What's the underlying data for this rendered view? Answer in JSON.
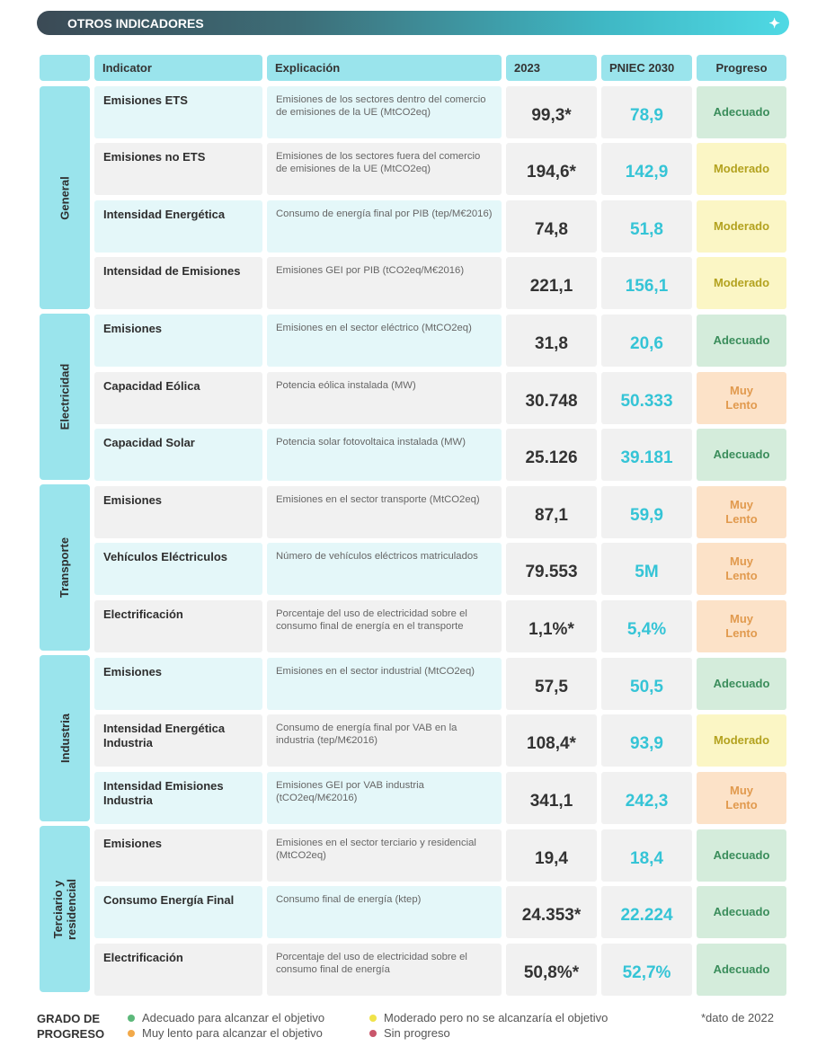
{
  "banner": {
    "title": "OTROS INDICADORES",
    "icon": "sparkle-icon"
  },
  "headers": {
    "indicator": "Indicator",
    "explicacion": "Explicación",
    "y2023": "2023",
    "pniec": "PNIEC 2030",
    "progreso": "Progreso"
  },
  "groups": [
    {
      "label": "General"
    },
    {
      "label": "Electricidad"
    },
    {
      "label": "Transporte"
    },
    {
      "label": "Industria"
    },
    {
      "label": "Terciario y residencial"
    }
  ],
  "rows": [
    {
      "indicator": "Emisiones ETS",
      "explicacion": "Emisiones de los sectores dentro del comercio de emisiones de la UE (MtCO2eq)",
      "y2023": "99,3*",
      "pniec": "78,9",
      "progreso": "Adecuado",
      "status": "adecuado"
    },
    {
      "indicator": "Emisiones no ETS",
      "explicacion": "Emisiones de los sectores fuera del comercio de emisiones de la UE (MtCO2eq)",
      "y2023": "194,6*",
      "pniec": "142,9",
      "progreso": "Moderado",
      "status": "moderado"
    },
    {
      "indicator": "Intensidad Energética",
      "explicacion": "Consumo de energía final por PIB (tep/M€2016)",
      "y2023": "74,8",
      "pniec": "51,8",
      "progreso": "Moderado",
      "status": "moderado"
    },
    {
      "indicator": "Intensidad de Emisiones",
      "explicacion": "Emisiones GEI por PIB (tCO2eq/M€2016)",
      "y2023": "221,1",
      "pniec": "156,1",
      "progreso": "Moderado",
      "status": "moderado"
    },
    {
      "indicator": "Emisiones",
      "explicacion": "Emisiones en el sector eléctrico (MtCO2eq)",
      "y2023": "31,8",
      "pniec": "20,6",
      "progreso": "Adecuado",
      "status": "adecuado"
    },
    {
      "indicator": "Capacidad Eólica",
      "explicacion": "Potencia eólica instalada (MW)",
      "y2023": "30.748",
      "pniec": "50.333",
      "progreso": "Muy Lento",
      "status": "lento"
    },
    {
      "indicator": "Capacidad Solar",
      "explicacion": "Potencia solar fotovoltaica instalada (MW)",
      "y2023": "25.126",
      "pniec": "39.181",
      "progreso": "Adecuado",
      "status": "adecuado"
    },
    {
      "indicator": "Emisiones",
      "explicacion": "Emisiones en el sector transporte (MtCO2eq)",
      "y2023": "87,1",
      "pniec": "59,9",
      "progreso": "Muy Lento",
      "status": "lento"
    },
    {
      "indicator": "Vehículos Eléctriculos",
      "explicacion": "Número de vehículos eléctricos matriculados",
      "y2023": "79.553",
      "pniec": "5M",
      "progreso": "Muy Lento",
      "status": "lento"
    },
    {
      "indicator": "Electrificación",
      "explicacion": "Porcentaje del uso de electricidad sobre el consumo final de energía en el transporte",
      "y2023": "1,1%*",
      "pniec": "5,4%",
      "progreso": "Muy Lento",
      "status": "lento"
    },
    {
      "indicator": "Emisiones",
      "explicacion": "Emisiones en el sector industrial (MtCO2eq)",
      "y2023": "57,5",
      "pniec": "50,5",
      "progreso": "Adecuado",
      "status": "adecuado"
    },
    {
      "indicator": "Intensidad Energética Industria",
      "explicacion": "Consumo de energía final por VAB en la industria (tep/M€2016)",
      "y2023": "108,4*",
      "pniec": "93,9",
      "progreso": "Moderado",
      "status": "moderado"
    },
    {
      "indicator": "Intensidad Emisiones Industria",
      "explicacion": "Emisiones GEI por VAB industria (tCO2eq/M€2016)",
      "y2023": "341,1",
      "pniec": "242,3",
      "progreso": "Muy Lento",
      "status": "lento"
    },
    {
      "indicator": "Emisiones",
      "explicacion": "Emisiones en el sector terciario y residencial (MtCO2eq)",
      "y2023": "19,4",
      "pniec": "18,4",
      "progreso": "Adecuado",
      "status": "adecuado"
    },
    {
      "indicator": "Consumo Energía Final",
      "explicacion": "Consumo final de energía (ktep)",
      "y2023": "24.353*",
      "pniec": "22.224",
      "progreso": "Adecuado",
      "status": "adecuado"
    },
    {
      "indicator": "Electrificación",
      "explicacion": "Porcentaje del uso de electricidad sobre el consumo final de energía",
      "y2023": "50,8%*",
      "pniec": "52,7%",
      "progreso": "Adecuado",
      "status": "adecuado"
    }
  ],
  "legend": {
    "title_line1": "GRADO DE",
    "title_line2": "PROGRESO",
    "items": [
      {
        "label": "Adecuado para alcanzar el objetivo",
        "color": "#5cb87a"
      },
      {
        "label": "Moderado pero no se alcanzaría el objetivo",
        "color": "#f0e34a"
      },
      {
        "label": "Muy lento para alcanzar el objetivo",
        "color": "#f2a94a"
      },
      {
        "label": "Sin progreso",
        "color": "#c9566b"
      }
    ],
    "note": "*dato de 2022"
  }
}
